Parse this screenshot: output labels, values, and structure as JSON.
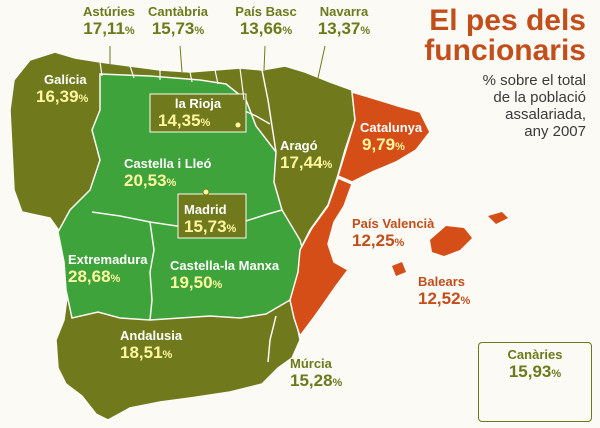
{
  "title": {
    "line1": "El pes dels",
    "line2": "funcionaris"
  },
  "subtitle": {
    "line1": "% sobre el total",
    "line2": "de la població",
    "line3": "assalariada,",
    "line4": "any 2007"
  },
  "colors": {
    "olive": "#707a1d",
    "green": "#3ea33a",
    "orange": "#d64e17",
    "yellow_label": "#fff7a0"
  },
  "percent_sign": "%",
  "regions": {
    "asturies": {
      "name": "Astúries",
      "value": "17,11"
    },
    "cantabria": {
      "name": "Cantàbria",
      "value": "15,73"
    },
    "pais_basc": {
      "name": "País Basc",
      "value": "13,66"
    },
    "navarra": {
      "name": "Navarra",
      "value": "13,37"
    },
    "galicia": {
      "name": "Galícia",
      "value": "16,39"
    },
    "la_rioja": {
      "name": "la Rioja",
      "value": "14,35"
    },
    "catalunya": {
      "name": "Catalunya",
      "value": "9,79"
    },
    "arago": {
      "name": "Aragó",
      "value": "17,44"
    },
    "castella_lleo": {
      "name": "Castella i Lleó",
      "value": "20,53"
    },
    "madrid": {
      "name": "Madrid",
      "value": "15,73"
    },
    "pais_valencia": {
      "name": "País Valencià",
      "value": "12,25"
    },
    "extremadura": {
      "name": "Extremadura",
      "value": "28,68"
    },
    "castella_manxa": {
      "name": "Castella-la Manxa",
      "value": "19,50"
    },
    "balears": {
      "name": "Balears",
      "value": "12,52"
    },
    "andalusia": {
      "name": "Andalusia",
      "value": "18,51"
    },
    "murcia": {
      "name": "Múrcia",
      "value": "15,28"
    },
    "canaries": {
      "name": "Canàries",
      "value": "15,93"
    }
  }
}
